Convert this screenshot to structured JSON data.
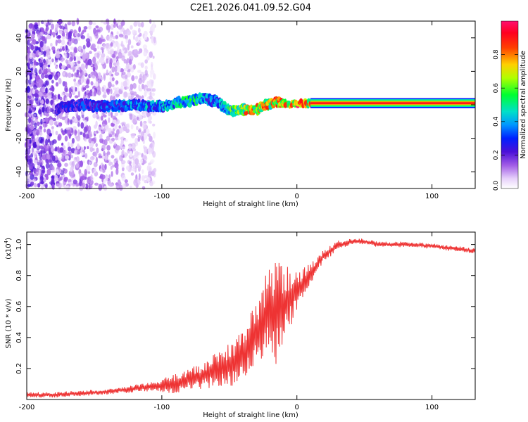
{
  "figure_title": "C2E1.2026.041.09.52.G04",
  "chart_data": [
    {
      "type": "heatmap",
      "title": "C2E1.2026.041.09.52.G04",
      "xlabel": "Height of straight line (km)",
      "ylabel": "Frequency (Hz)",
      "xlim": [
        -200,
        132
      ],
      "ylim": [
        -50,
        50
      ],
      "xticks": [
        -200,
        -100,
        0,
        100
      ],
      "yticks": [
        -40,
        -20,
        0,
        20,
        40
      ],
      "colorbar": {
        "label": "Normalized spectral amplitude",
        "range": [
          0,
          1
        ],
        "ticks": [
          0.2,
          0.4,
          0.6,
          0.8
        ],
        "tick_labels": [
          "0.2",
          "0.4",
          "0.6",
          "0.8"
        ],
        "low_label": "0.0"
      },
      "signal_track": {
        "x": [
          -178,
          -160,
          -140,
          -120,
          -100,
          -90,
          -80,
          -75,
          -70,
          -65,
          -60,
          -55,
          -50,
          -45,
          -40,
          -35,
          -30,
          -25,
          -20,
          -15,
          -10,
          -5,
          0,
          5,
          10,
          50,
          100,
          132
        ],
        "freq_hz": [
          -2,
          0,
          -1,
          0,
          -1,
          1,
          2,
          3,
          4,
          3,
          2,
          -1,
          -3,
          -4,
          -3,
          -3,
          -3,
          -1,
          1,
          2,
          1,
          0,
          1,
          1,
          1,
          1,
          1,
          1
        ],
        "amplitude": [
          0.3,
          0.35,
          0.4,
          0.45,
          0.5,
          0.55,
          0.6,
          0.6,
          0.5,
          0.45,
          0.45,
          0.5,
          0.6,
          0.7,
          0.85,
          0.9,
          0.9,
          0.95,
          0.95,
          0.95,
          0.95,
          1.0,
          1.0,
          1.0,
          1.0,
          1.0,
          1.0,
          1.0
        ]
      },
      "noise_region_x": [
        -200,
        -105
      ]
    },
    {
      "type": "line",
      "xlabel": "Height of straight line (km)",
      "ylabel": "SNR (10 * v/v)",
      "y_multiplier": "(x10",
      "y_multiplier_exp": "4",
      "y_multiplier_close": ")",
      "xlim": [
        -200,
        132
      ],
      "ylim": [
        0,
        1.08
      ],
      "xticks": [
        -200,
        -100,
        0,
        100
      ],
      "yticks": [
        0.2,
        0.4,
        0.6,
        0.8,
        1.0
      ],
      "series": [
        {
          "name": "SNR",
          "color": "#ee3333",
          "x": [
            -200,
            -180,
            -160,
            -140,
            -130,
            -120,
            -110,
            -100,
            -90,
            -80,
            -70,
            -60,
            -50,
            -40,
            -35,
            -30,
            -25,
            -20,
            -15,
            -10,
            -5,
            0,
            5,
            10,
            15,
            20,
            30,
            40,
            50,
            60,
            80,
            100,
            120,
            132
          ],
          "y": [
            0.03,
            0.03,
            0.04,
            0.05,
            0.06,
            0.07,
            0.08,
            0.09,
            0.1,
            0.13,
            0.15,
            0.19,
            0.22,
            0.28,
            0.36,
            0.42,
            0.5,
            0.6,
            0.55,
            0.6,
            0.65,
            0.7,
            0.75,
            0.8,
            0.87,
            0.93,
            0.99,
            1.02,
            1.02,
            1.0,
            1.0,
            0.99,
            0.97,
            0.96
          ],
          "noise_amplitude": [
            0.02,
            0.02,
            0.02,
            0.02,
            0.02,
            0.03,
            0.03,
            0.05,
            0.07,
            0.08,
            0.1,
            0.13,
            0.16,
            0.18,
            0.22,
            0.25,
            0.28,
            0.32,
            0.4,
            0.3,
            0.22,
            0.16,
            0.12,
            0.08,
            0.06,
            0.05,
            0.04,
            0.02,
            0.02,
            0.02,
            0.02,
            0.02,
            0.02,
            0.02
          ]
        }
      ]
    }
  ]
}
